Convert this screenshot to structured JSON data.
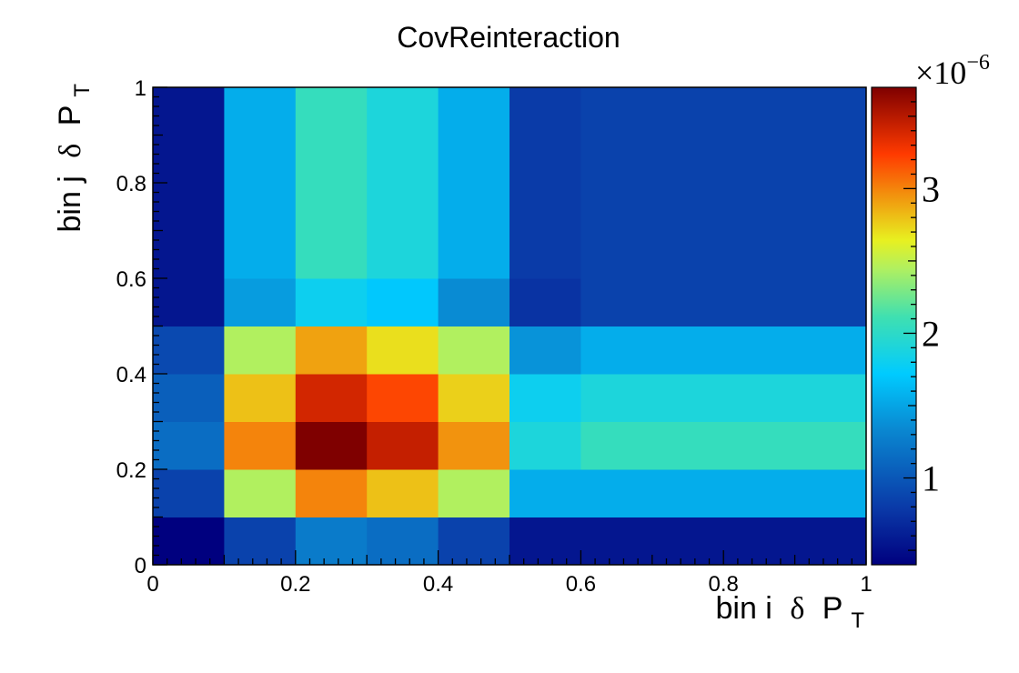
{
  "chart_data": {
    "type": "heatmap",
    "title": "CovReinteraction",
    "xlabel": {
      "main": "bin i",
      "symbol": "δ",
      "var": "P",
      "sub": "T"
    },
    "ylabel": {
      "main": "bin j",
      "symbol": "δ",
      "var": "P",
      "sub": "T"
    },
    "xlim": [
      0,
      1
    ],
    "ylim": [
      0,
      1
    ],
    "x_edges": [
      0,
      0.1,
      0.2,
      0.3,
      0.4,
      0.5,
      0.6,
      1.0
    ],
    "y_edges": [
      0,
      0.1,
      0.2,
      0.3,
      0.4,
      0.5,
      0.6,
      1.0
    ],
    "x_ticks": [
      "0",
      "0.2",
      "0.4",
      "0.6",
      "0.8",
      "1"
    ],
    "y_ticks": [
      "0",
      "0.2",
      "0.4",
      "0.6",
      "0.8",
      "1"
    ],
    "z_label_base": "×10",
    "z_label_exp": "−6",
    "z_range": [
      0.4,
      3.7
    ],
    "z_ticks": [
      "1",
      "2",
      "3"
    ],
    "z_units_scale": 1e-06,
    "values": [
      [
        0.4,
        0.85,
        1.25,
        1.15,
        0.85,
        0.55,
        0.55
      ],
      [
        0.85,
        2.45,
        3.0,
        2.8,
        2.45,
        1.55,
        1.55
      ],
      [
        1.15,
        3.0,
        3.7,
        3.45,
        2.95,
        1.9,
        2.05
      ],
      [
        1.05,
        2.8,
        3.4,
        3.2,
        2.75,
        1.8,
        1.9
      ],
      [
        0.9,
        2.45,
        2.9,
        2.7,
        2.45,
        1.4,
        1.55
      ],
      [
        0.55,
        1.45,
        1.8,
        1.7,
        1.35,
        0.75,
        0.85
      ],
      [
        0.55,
        1.55,
        2.05,
        1.9,
        1.55,
        0.8,
        0.85
      ]
    ]
  }
}
